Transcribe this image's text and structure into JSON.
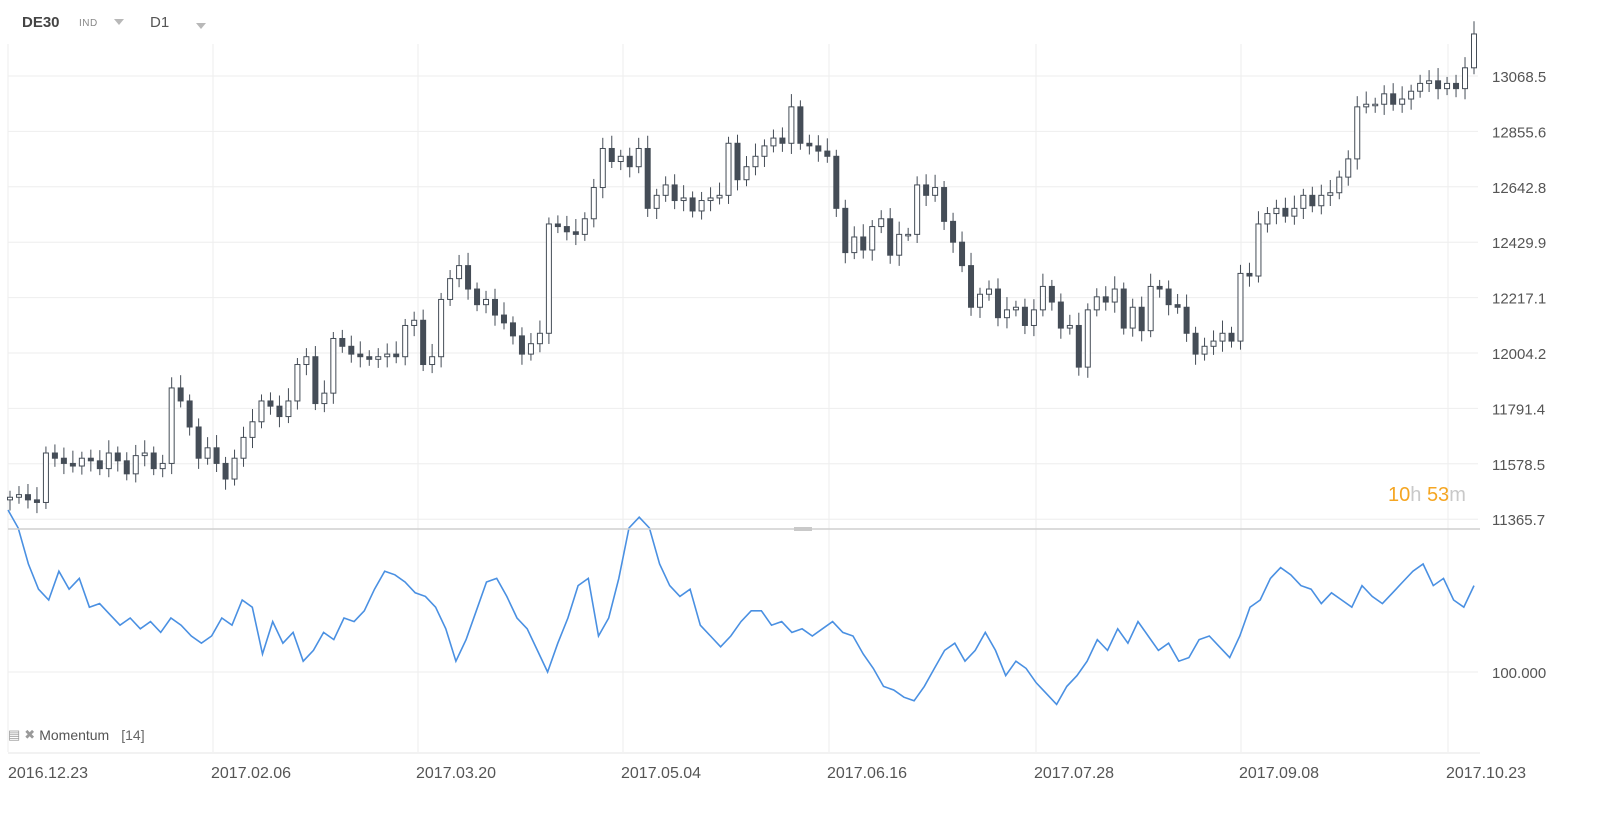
{
  "toolbar": {
    "symbol": "DE30",
    "instrument_type": "IND",
    "timeframe": "D1"
  },
  "countdown": {
    "hours": "10",
    "hours_unit": "h",
    "minutes": "53",
    "minutes_unit": "m"
  },
  "indicator": {
    "name": "Momentum",
    "period": "[14]"
  },
  "colors": {
    "candle": "#454d57",
    "momentum": "#4a90e2",
    "grid": "#ececec",
    "timer": "#f5a623"
  },
  "chart_data": [
    {
      "type": "candlestick",
      "xlabel_ticks": [
        "2016.12.23",
        "2017.02.06",
        "2017.03.20",
        "2017.05.04",
        "2017.06.16",
        "2017.07.28",
        "2017.09.08",
        "2017.10.23"
      ],
      "y_ticks": [
        "13068.5",
        "12855.6",
        "12642.8",
        "12429.9",
        "12217.1",
        "12004.2",
        "11791.4",
        "11578.5",
        "11365.7"
      ],
      "ylim": [
        11365.7,
        13281.3
      ],
      "close": [
        11450,
        11460,
        11440,
        11430,
        11620,
        11600,
        11580,
        11570,
        11600,
        11590,
        11560,
        11620,
        11590,
        11540,
        11610,
        11620,
        11560,
        11580,
        11870,
        11820,
        11720,
        11600,
        11640,
        11580,
        11520,
        11600,
        11680,
        11740,
        11820,
        11800,
        11760,
        11820,
        11960,
        11990,
        11810,
        11850,
        12060,
        12030,
        12000,
        11990,
        11980,
        11990,
        12000,
        11990,
        12110,
        12130,
        11960,
        11990,
        12210,
        12290,
        12340,
        12250,
        12190,
        12210,
        12150,
        12120,
        12070,
        12000,
        12040,
        12080,
        12500,
        12490,
        12470,
        12460,
        12520,
        12640,
        12790,
        12740,
        12760,
        12720,
        12790,
        12560,
        12610,
        12650,
        12590,
        12600,
        12550,
        12590,
        12600,
        12610,
        12810,
        12670,
        12720,
        12760,
        12800,
        12830,
        12810,
        12950,
        12810,
        12800,
        12780,
        12760,
        12560,
        12390,
        12450,
        12400,
        12490,
        12520,
        12380,
        12460,
        12460,
        12650,
        12610,
        12640,
        12510,
        12430,
        12340,
        12180,
        12230,
        12250,
        12140,
        12170,
        12180,
        12110,
        12170,
        12260,
        12200,
        12100,
        12110,
        11950,
        12170,
        12220,
        12200,
        12250,
        12100,
        12180,
        12090,
        12260,
        12250,
        12190,
        12180,
        12080,
        12000,
        12030,
        12050,
        12080,
        12050,
        12310,
        12300,
        12500,
        12540,
        12560,
        12530,
        12560,
        12610,
        12570,
        12610,
        12620,
        12680,
        12750,
        12950,
        12960,
        12960,
        13000,
        12960,
        12980,
        13010,
        13040,
        13050,
        13020,
        13040,
        13020,
        13100,
        13230
      ],
      "note": "approximate daily closes read off the chart"
    },
    {
      "type": "line",
      "name": "Momentum",
      "y_ticks": [
        "100.000"
      ],
      "values": [
        104.5,
        104,
        103,
        102.3,
        102.0,
        102.8,
        102.3,
        102.6,
        101.8,
        101.9,
        101.6,
        101.3,
        101.5,
        101.2,
        101.4,
        101.1,
        101.5,
        101.3,
        101.0,
        100.8,
        101.0,
        101.5,
        101.3,
        102.0,
        101.8,
        100.5,
        101.4,
        100.8,
        101.1,
        100.3,
        100.6,
        101.1,
        100.9,
        101.5,
        101.4,
        101.7,
        102.3,
        102.8,
        102.7,
        102.5,
        102.2,
        102.1,
        101.8,
        101.2,
        100.3,
        100.9,
        101.7,
        102.5,
        102.6,
        102.1,
        101.5,
        101.2,
        100.6,
        100.0,
        100.8,
        101.5,
        102.4,
        102.6,
        101.0,
        101.5,
        102.6,
        104.0,
        104.3,
        104.0,
        103.0,
        102.4,
        102.1,
        102.3,
        101.3,
        101.0,
        100.7,
        101.0,
        101.4,
        101.7,
        101.7,
        101.3,
        101.4,
        101.1,
        101.2,
        101.0,
        101.2,
        101.4,
        101.1,
        101.0,
        100.5,
        100.1,
        99.6,
        99.5,
        99.3,
        99.2,
        99.6,
        100.1,
        100.6,
        100.8,
        100.3,
        100.6,
        101.1,
        100.6,
        99.9,
        100.3,
        100.1,
        99.7,
        99.4,
        99.1,
        99.6,
        99.9,
        100.3,
        100.9,
        100.6,
        101.2,
        100.8,
        101.4,
        101.0,
        100.6,
        100.8,
        100.3,
        100.4,
        100.9,
        101.0,
        100.7,
        100.4,
        101.0,
        101.8,
        102.0,
        102.6,
        102.9,
        102.7,
        102.4,
        102.3,
        101.9,
        102.2,
        102.0,
        101.8,
        102.4,
        102.1,
        101.9,
        102.2,
        102.5,
        102.8,
        103.0,
        102.4,
        102.6,
        102.0,
        101.8,
        102.4
      ],
      "note": "approximate shape of momentum line; only 100.000 tick printed"
    }
  ]
}
